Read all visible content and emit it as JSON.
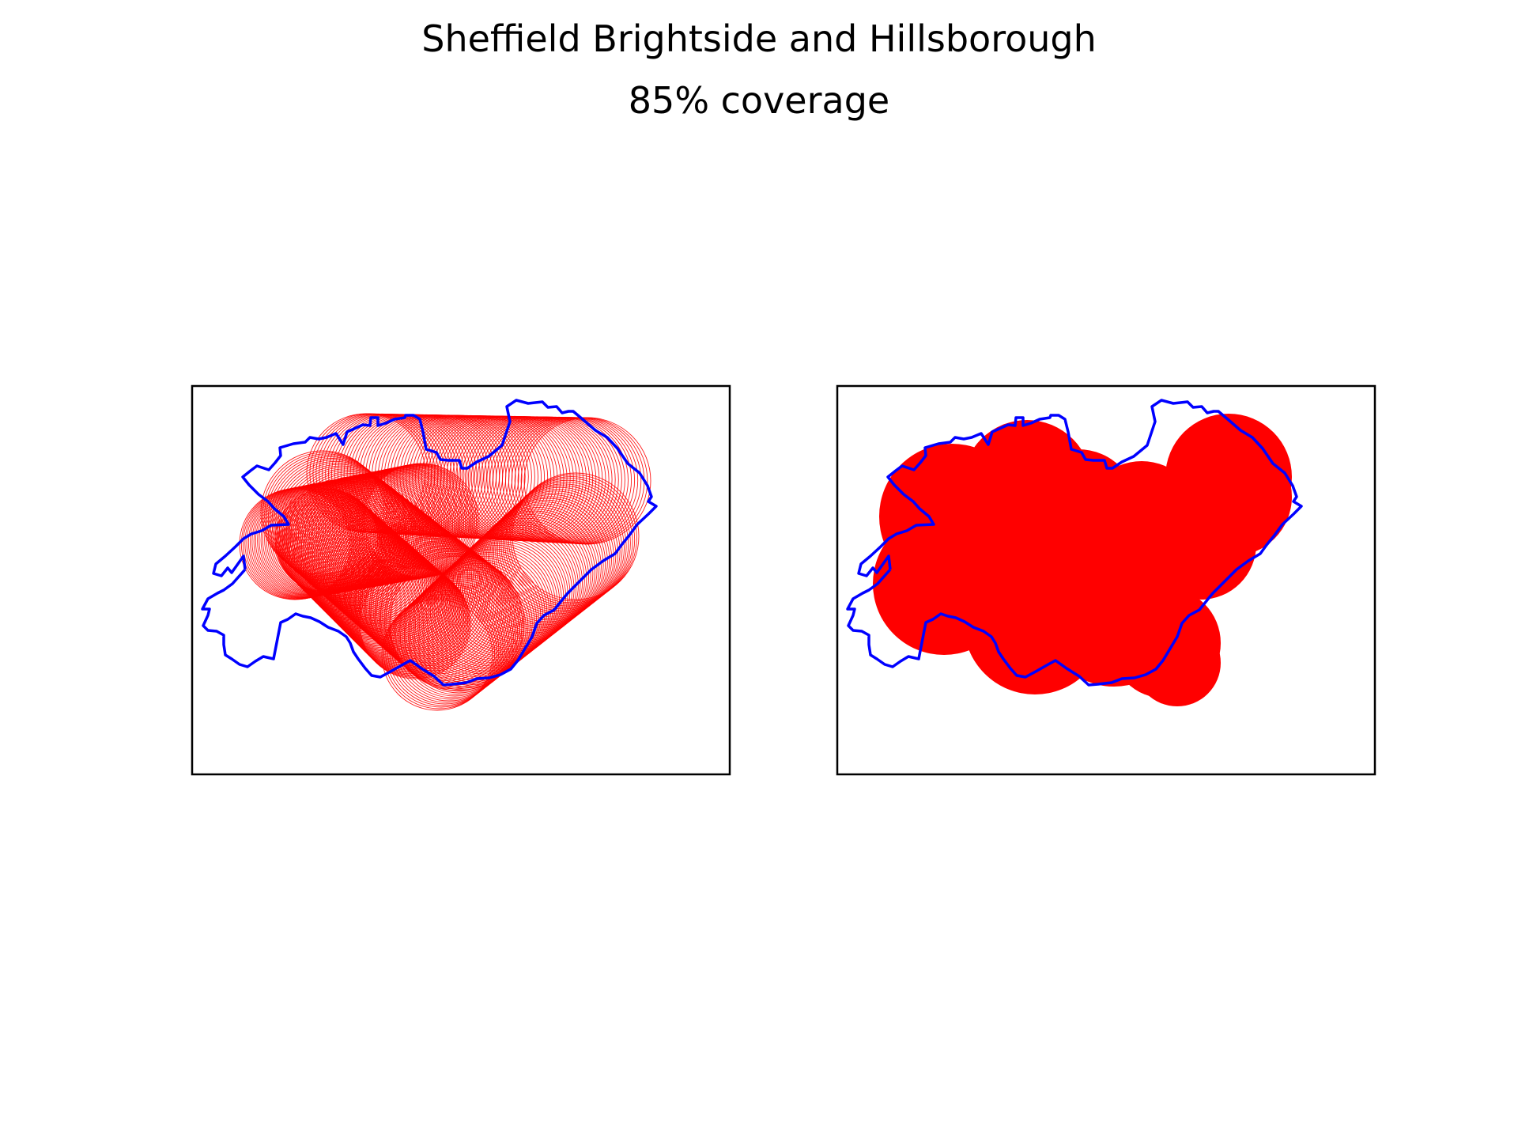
{
  "figure": {
    "title": "Sheffield Brightside and Hillsborough",
    "subtitle": "85% coverage"
  },
  "colors": {
    "boundary": "#0000ff",
    "coverage": "#ff0000",
    "frame": "#000000",
    "background": "#ffffff"
  },
  "chart_data": [
    {
      "type": "map",
      "title": "",
      "panel": "left",
      "style": "coverage-circles-outlined",
      "boundary_color": "#0000ff",
      "coverage_color": "#ff0000",
      "coverage_percent": 85,
      "axes_ticks": false
    },
    {
      "type": "map",
      "title": "",
      "panel": "right",
      "style": "coverage-union-filled",
      "boundary_color": "#0000ff",
      "coverage_color": "#ff0000",
      "coverage_percent": 85,
      "axes_ticks": false
    }
  ]
}
